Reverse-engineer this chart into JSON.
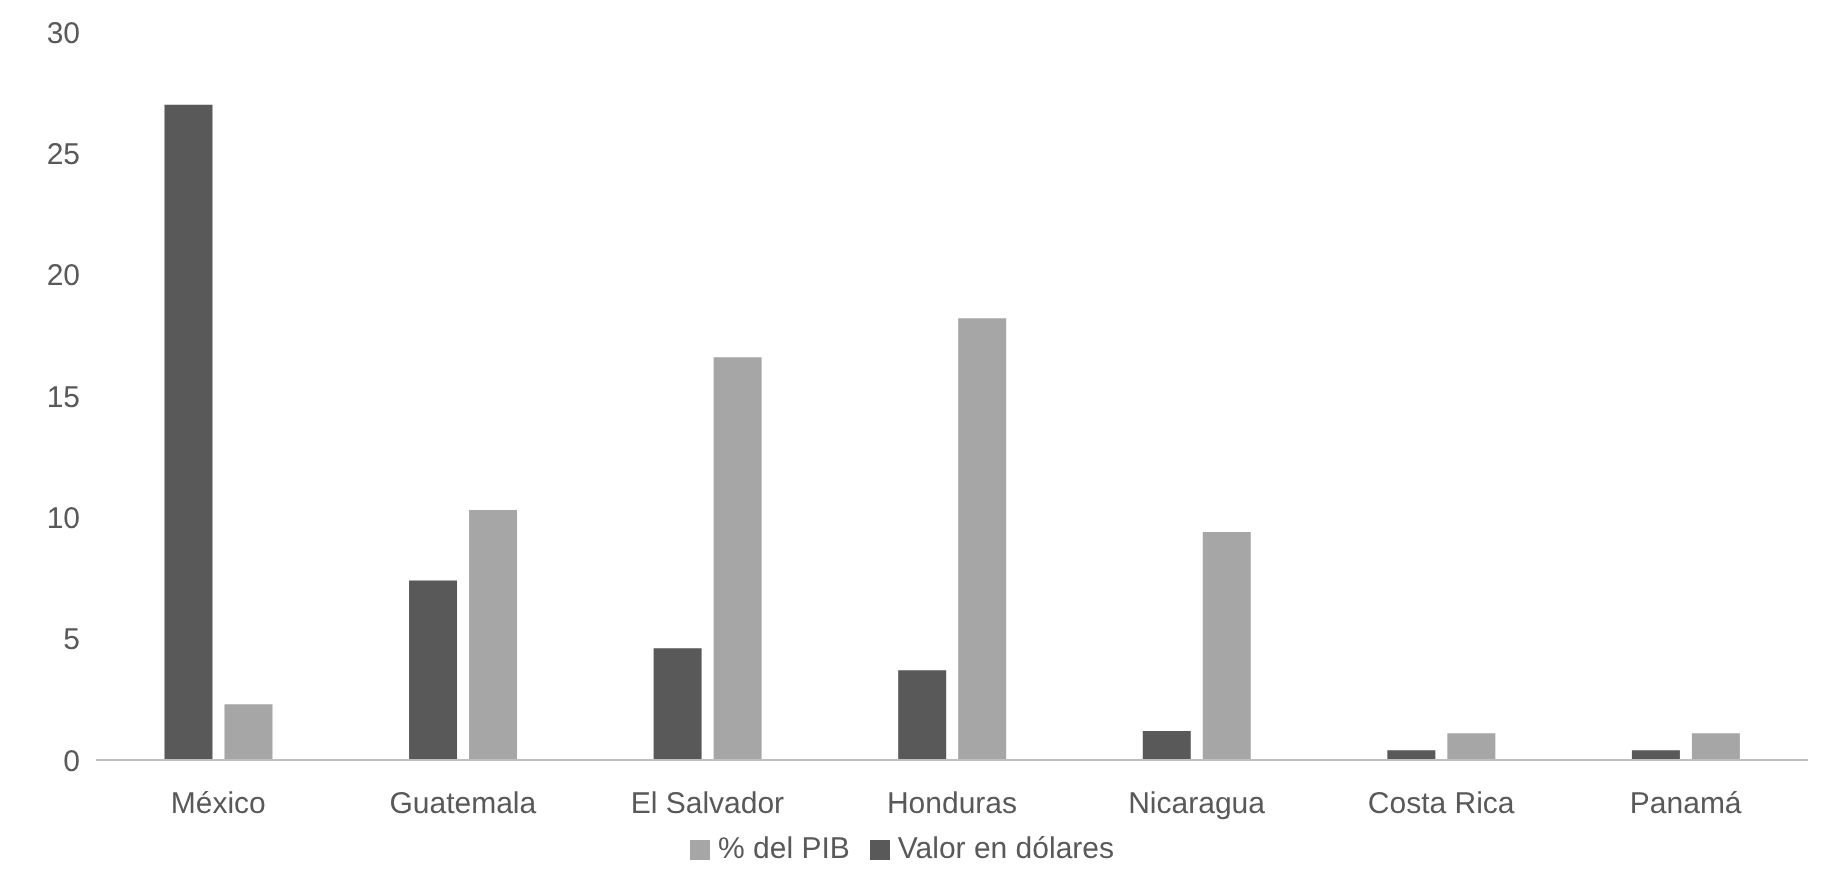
{
  "chart_data": {
    "type": "bar",
    "categories": [
      "México",
      "Guatemala",
      "El Salvador",
      "Honduras",
      "Nicaragua",
      "Costa Rica",
      "Panamá"
    ],
    "series": [
      {
        "name": "Valor en dólares",
        "color": "#595959",
        "values": [
          27,
          7.4,
          4.6,
          3.7,
          1.2,
          0.4,
          0.4
        ]
      },
      {
        "name": "% del PIB",
        "color": "#a6a6a6",
        "values": [
          2.3,
          10.3,
          16.6,
          18.2,
          9.4,
          1.1,
          1.1
        ]
      }
    ],
    "ylim": [
      0,
      30
    ],
    "yticks": [
      0,
      5,
      10,
      15,
      20,
      25,
      30
    ],
    "grid": false,
    "legend": "bottom"
  }
}
